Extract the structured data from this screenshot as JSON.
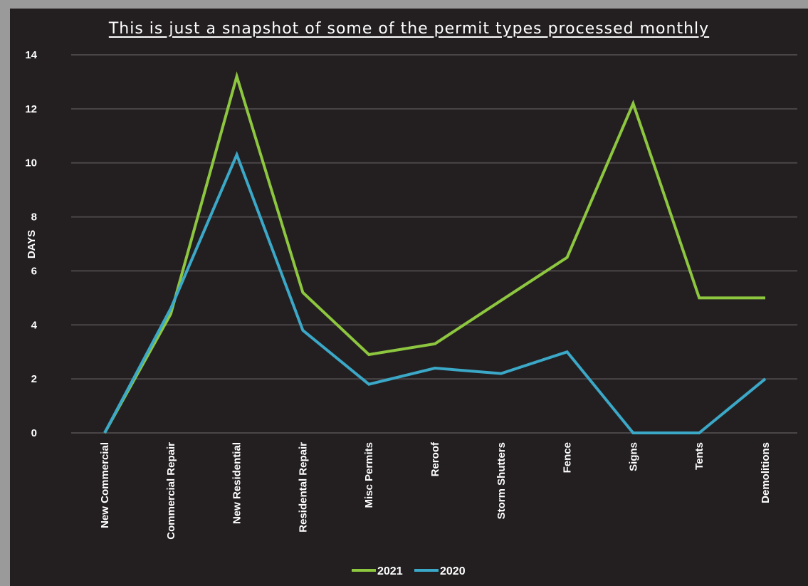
{
  "chart_data": {
    "type": "line",
    "title": "This is just a snapshot of some of the permit types processed monthly",
    "xlabel": "",
    "ylabel": "DAYS",
    "ylim": [
      0,
      14
    ],
    "yticks": [
      0,
      2,
      4,
      6,
      8,
      10,
      12,
      14
    ],
    "grid": true,
    "legend_position": "bottom",
    "categories": [
      "New Commercial",
      "Commercial Repair",
      "New Residential",
      "Residental Repair",
      "Misc Permits",
      "Reroof",
      "Storm Shutters",
      "Fence",
      "Signs",
      "Tents",
      "Demolitions"
    ],
    "series": [
      {
        "name": "2021",
        "color": "#8dc63f",
        "values": [
          0,
          4.4,
          13.2,
          5.2,
          2.9,
          3.3,
          4.9,
          6.5,
          12.2,
          5.0,
          5.0
        ]
      },
      {
        "name": "2020",
        "color": "#3ba8c8",
        "values": [
          0,
          4.6,
          10.3,
          3.8,
          1.8,
          2.4,
          2.2,
          3.0,
          0,
          0,
          2.0
        ]
      }
    ]
  }
}
